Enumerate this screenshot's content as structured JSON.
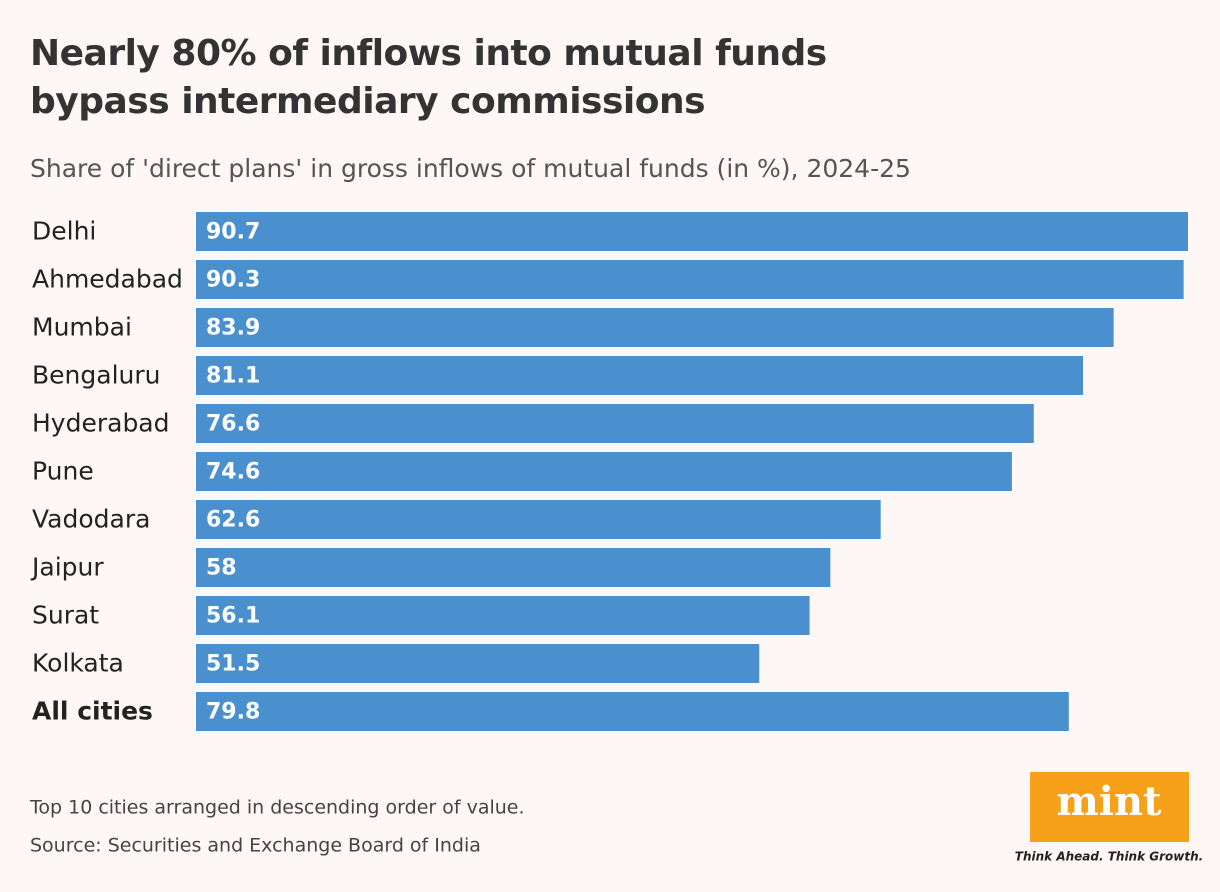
{
  "chart_data": {
    "type": "bar",
    "orientation": "horizontal",
    "title": "Nearly 80% of inflows into mutual funds bypass intermediary commissions",
    "subtitle": "Share of 'direct plans' in gross inflows of mutual funds (in %), 2024-25",
    "categories": [
      "Delhi",
      "Ahmedabad",
      "Mumbai",
      "Bengaluru",
      "Hyderabad",
      "Pune",
      "Vadodara",
      "Jaipur",
      "Surat",
      "Kolkata",
      "All cities"
    ],
    "values": [
      90.7,
      90.3,
      83.9,
      81.1,
      76.6,
      74.6,
      62.6,
      58,
      56.1,
      51.5,
      79.8
    ],
    "color": "#4a90cf",
    "xlim": [
      0,
      90.7
    ],
    "note": "Top 10 cities arranged in descending order of value.",
    "source": "Source: Securities and Exchange Board of India"
  },
  "logo": {
    "text": "mint",
    "tagline": "Think Ahead. Think Growth."
  }
}
